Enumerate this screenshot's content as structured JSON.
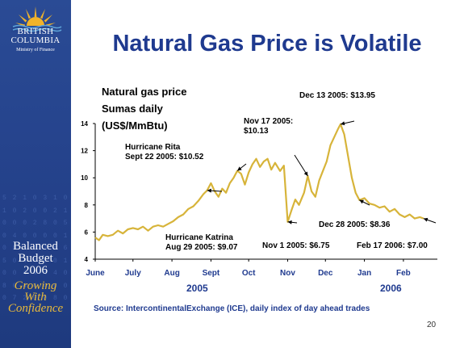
{
  "sidebar": {
    "org_name": "BRITISH\nCOLUMBIA",
    "ministry": "Ministry of Finance",
    "budget_title": "Balanced\nBudget\n2006",
    "tagline": "Growing\nWith\nConfidence",
    "digits": "5 2 1 0 3 1 0\n1 0 2 0 0 2 1 0\n0 0 0 2 8 0 5 0 5\n0 4 0 0 0 0 1 2\n0 0 5 1 3 4 6 1\n5 0 4 4 4 0 1 0\n0 0 4 4 4 4 0 0\n8 0 4 4 4 6 0 6\n0 7 2 0 0 8 0 9"
  },
  "slide": {
    "title": "Natural Gas Price is Volatile",
    "source": "Source: IntercontinentalExchange (ICE), daily index of day ahead trades",
    "page_number": "20",
    "year_2005": "2005",
    "year_2006": "2006"
  },
  "chart_data": {
    "type": "line",
    "title": "",
    "ylabel": "Natural gas price\nSumas daily\n(US$/MmBtu)",
    "xlabel": "",
    "ylim": [
      4,
      14
    ],
    "yticks": [
      "4",
      "6",
      "8",
      "10",
      "12",
      "14"
    ],
    "xticks": [
      "June",
      "July",
      "Aug",
      "Sept",
      "Oct",
      "Nov",
      "Dec",
      "Jan",
      "Feb"
    ],
    "x_start": "2005-06-01",
    "color": "#d7b43a",
    "series": [
      {
        "values": [
          [
            "2005-06-01",
            5.6
          ],
          [
            "2005-06-04",
            5.4
          ],
          [
            "2005-06-07",
            5.8
          ],
          [
            "2005-06-11",
            5.7
          ],
          [
            "2005-06-15",
            5.8
          ],
          [
            "2005-06-19",
            6.1
          ],
          [
            "2005-06-23",
            5.9
          ],
          [
            "2005-06-27",
            6.2
          ],
          [
            "2005-07-01",
            6.3
          ],
          [
            "2005-07-05",
            6.2
          ],
          [
            "2005-07-09",
            6.4
          ],
          [
            "2005-07-13",
            6.1
          ],
          [
            "2005-07-17",
            6.4
          ],
          [
            "2005-07-21",
            6.5
          ],
          [
            "2005-07-25",
            6.4
          ],
          [
            "2005-07-29",
            6.6
          ],
          [
            "2005-08-02",
            6.8
          ],
          [
            "2005-08-06",
            7.1
          ],
          [
            "2005-08-10",
            7.3
          ],
          [
            "2005-08-14",
            7.7
          ],
          [
            "2005-08-18",
            7.9
          ],
          [
            "2005-08-22",
            8.3
          ],
          [
            "2005-08-26",
            8.8
          ],
          [
            "2005-08-29",
            9.07
          ],
          [
            "2005-09-01",
            9.6
          ],
          [
            "2005-09-04",
            9.0
          ],
          [
            "2005-09-07",
            8.6
          ],
          [
            "2005-09-10",
            9.2
          ],
          [
            "2005-09-13",
            8.9
          ],
          [
            "2005-09-16",
            9.6
          ],
          [
            "2005-09-19",
            10.0
          ],
          [
            "2005-09-22",
            10.52
          ],
          [
            "2005-09-25",
            10.3
          ],
          [
            "2005-09-28",
            9.5
          ],
          [
            "2005-10-01",
            10.4
          ],
          [
            "2005-10-04",
            11.0
          ],
          [
            "2005-10-07",
            11.4
          ],
          [
            "2005-10-10",
            10.8
          ],
          [
            "2005-10-13",
            11.2
          ],
          [
            "2005-10-16",
            11.4
          ],
          [
            "2005-10-19",
            10.6
          ],
          [
            "2005-10-22",
            11.1
          ],
          [
            "2005-10-26",
            10.5
          ],
          [
            "2005-10-29",
            10.9
          ],
          [
            "2005-11-01",
            6.75
          ],
          [
            "2005-11-04",
            7.6
          ],
          [
            "2005-11-07",
            8.4
          ],
          [
            "2005-11-10",
            8.0
          ],
          [
            "2005-11-14",
            8.9
          ],
          [
            "2005-11-17",
            10.13
          ],
          [
            "2005-11-20",
            9.0
          ],
          [
            "2005-11-23",
            8.6
          ],
          [
            "2005-11-26",
            9.8
          ],
          [
            "2005-11-29",
            10.5
          ],
          [
            "2005-12-02",
            11.2
          ],
          [
            "2005-12-05",
            12.4
          ],
          [
            "2005-12-08",
            13.0
          ],
          [
            "2005-12-11",
            13.6
          ],
          [
            "2005-12-13",
            13.95
          ],
          [
            "2005-12-16",
            13.2
          ],
          [
            "2005-12-19",
            11.6
          ],
          [
            "2005-12-22",
            10.0
          ],
          [
            "2005-12-25",
            8.9
          ],
          [
            "2005-12-28",
            8.36
          ],
          [
            "2006-01-01",
            8.5
          ],
          [
            "2006-01-05",
            8.1
          ],
          [
            "2006-01-09",
            8.0
          ],
          [
            "2006-01-13",
            7.8
          ],
          [
            "2006-01-17",
            7.9
          ],
          [
            "2006-01-21",
            7.5
          ],
          [
            "2006-01-25",
            7.7
          ],
          [
            "2006-01-29",
            7.3
          ],
          [
            "2006-02-02",
            7.1
          ],
          [
            "2006-02-06",
            7.3
          ],
          [
            "2006-02-10",
            7.0
          ],
          [
            "2006-02-14",
            7.1
          ],
          [
            "2006-02-17",
            7.0
          ]
        ]
      }
    ],
    "annotations": [
      {
        "text": "Hurricane Rita\nSept 22 2005: $10.52",
        "date": "2005-09-22",
        "value": 10.52
      },
      {
        "text": "Hurricane Katrina\nAug 29 2005: $9.07",
        "date": "2005-08-29",
        "value": 9.07
      },
      {
        "text": "Nov 17 2005:\n$10.13",
        "date": "2005-11-17",
        "value": 10.13
      },
      {
        "text": "Dec 13 2005: $13.95",
        "date": "2005-12-13",
        "value": 13.95
      },
      {
        "text": "Nov 1 2005: $6.75",
        "date": "2005-11-01",
        "value": 6.75
      },
      {
        "text": "Dec 28 2005: $8.36",
        "date": "2005-12-28",
        "value": 8.36
      },
      {
        "text": "Feb 17 2006: $7.00",
        "date": "2006-02-17",
        "value": 7.0
      }
    ]
  }
}
